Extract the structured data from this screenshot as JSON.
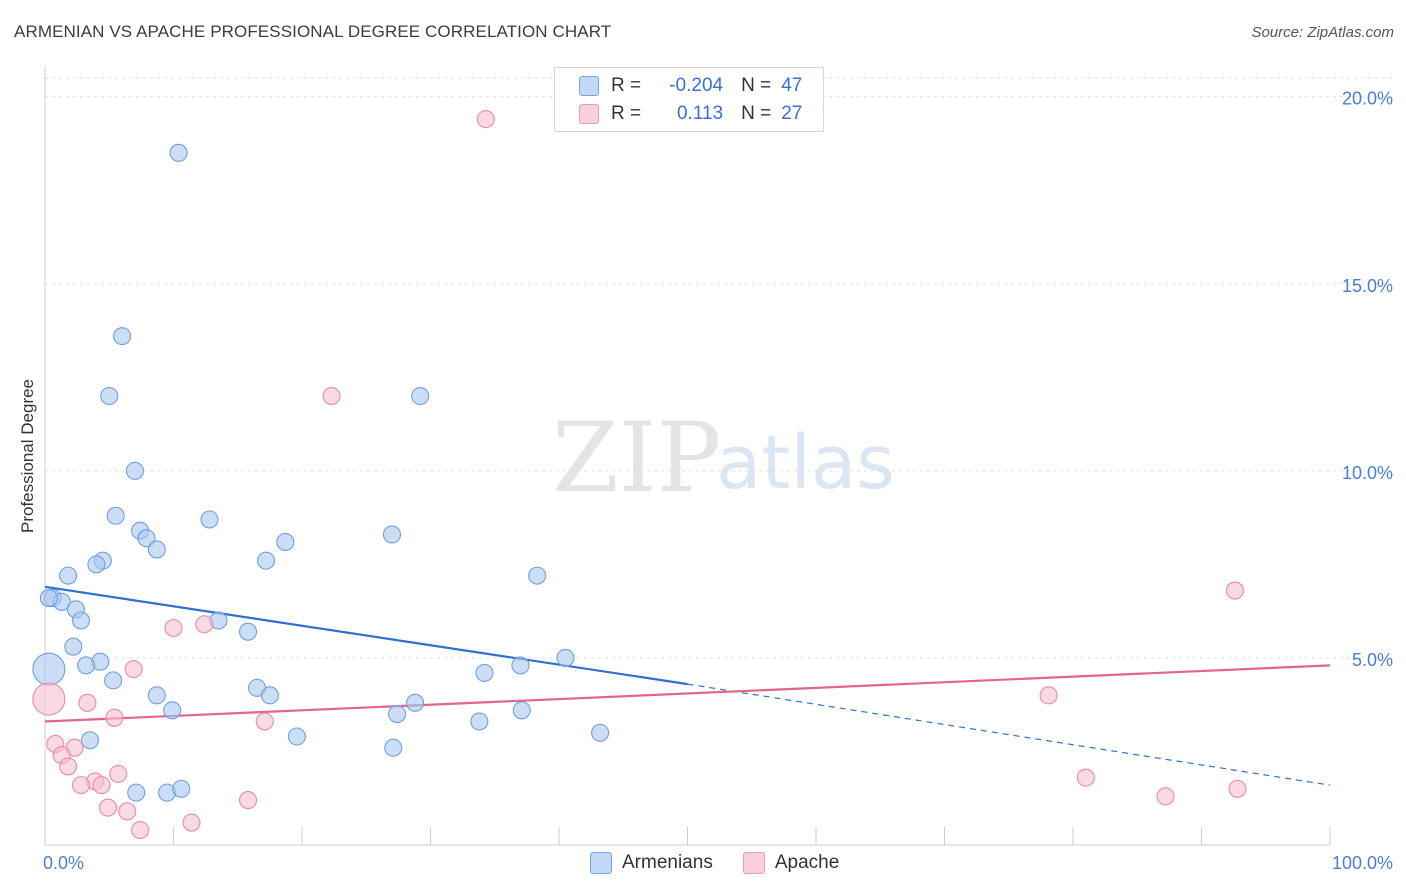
{
  "title": "ARMENIAN VS APACHE PROFESSIONAL DEGREE CORRELATION CHART",
  "source": "Source: ZipAtlas.com",
  "watermark": {
    "zip": "ZIP",
    "atlas": "atlas"
  },
  "legend": {
    "rows": [
      {
        "r_label": "R =",
        "r_value": "-0.204",
        "n_label": "N =",
        "n_value": "47"
      },
      {
        "r_label": "R =",
        "r_value": "0.113",
        "n_label": "N =",
        "n_value": "27"
      }
    ]
  },
  "bottom_legend": {
    "armenians": "Armenians",
    "apache": "Apache"
  },
  "colors": {
    "armenians_fill": "#a9c8f0",
    "armenians_stroke": "#6f9fdf",
    "armenians_line": "#2f6fd0",
    "apache_fill": "#f5bfd0",
    "apache_stroke": "#e98aa8",
    "apache_line": "#e0658f",
    "axis_label": "#4a7fd0",
    "grid": "#dddddd"
  },
  "chart_data": {
    "type": "scatter",
    "title": "ARMENIAN VS APACHE PROFESSIONAL DEGREE CORRELATION CHART",
    "xlabel": "",
    "ylabel": "Professional Degree",
    "xlim": [
      0,
      100
    ],
    "ylim": [
      0,
      20.5
    ],
    "x_tick_labels": [
      "0.0%",
      "100.0%"
    ],
    "y_ticks": [
      5,
      10,
      15,
      20
    ],
    "y_tick_labels": [
      "5.0%",
      "10.0%",
      "15.0%",
      "20.0%"
    ],
    "series": [
      {
        "name": "Armenians",
        "r": -0.204,
        "n": 47,
        "trend": {
          "x0": 0,
          "y0": 6.9,
          "x1": 50,
          "y1": 4.3,
          "dash_to_x": 100,
          "dash_to_y": 1.6
        },
        "points": [
          {
            "x": 10.4,
            "y": 18.5
          },
          {
            "x": 6.0,
            "y": 13.6
          },
          {
            "x": 5.0,
            "y": 12.0
          },
          {
            "x": 29.2,
            "y": 12.0
          },
          {
            "x": 7.0,
            "y": 10.0
          },
          {
            "x": 5.5,
            "y": 8.8
          },
          {
            "x": 7.4,
            "y": 8.4
          },
          {
            "x": 7.9,
            "y": 8.2
          },
          {
            "x": 8.7,
            "y": 7.9
          },
          {
            "x": 12.8,
            "y": 8.7
          },
          {
            "x": 18.7,
            "y": 8.1
          },
          {
            "x": 27.0,
            "y": 8.3
          },
          {
            "x": 4.5,
            "y": 7.6
          },
          {
            "x": 4.0,
            "y": 7.5
          },
          {
            "x": 17.2,
            "y": 7.6
          },
          {
            "x": 1.8,
            "y": 7.2
          },
          {
            "x": 38.3,
            "y": 7.2
          },
          {
            "x": 0.6,
            "y": 6.6
          },
          {
            "x": 1.3,
            "y": 6.5
          },
          {
            "x": 2.4,
            "y": 6.3
          },
          {
            "x": 2.8,
            "y": 6.0
          },
          {
            "x": 13.5,
            "y": 6.0
          },
          {
            "x": 15.8,
            "y": 5.7
          },
          {
            "x": 2.2,
            "y": 5.3
          },
          {
            "x": 40.5,
            "y": 5.0
          },
          {
            "x": 4.3,
            "y": 4.9
          },
          {
            "x": 3.2,
            "y": 4.8
          },
          {
            "x": 37.0,
            "y": 4.8
          },
          {
            "x": 34.2,
            "y": 4.6
          },
          {
            "x": 0.3,
            "y": 4.7
          },
          {
            "x": 5.3,
            "y": 4.4
          },
          {
            "x": 16.5,
            "y": 4.2
          },
          {
            "x": 8.7,
            "y": 4.0
          },
          {
            "x": 17.5,
            "y": 4.0
          },
          {
            "x": 28.8,
            "y": 3.8
          },
          {
            "x": 9.9,
            "y": 3.6
          },
          {
            "x": 27.4,
            "y": 3.5
          },
          {
            "x": 37.1,
            "y": 3.6
          },
          {
            "x": 33.8,
            "y": 3.3
          },
          {
            "x": 3.5,
            "y": 2.8
          },
          {
            "x": 19.6,
            "y": 2.9
          },
          {
            "x": 43.2,
            "y": 3.0
          },
          {
            "x": 27.1,
            "y": 2.6
          },
          {
            "x": 7.1,
            "y": 1.4
          },
          {
            "x": 9.5,
            "y": 1.4
          },
          {
            "x": 10.6,
            "y": 1.5
          },
          {
            "x": 0.3,
            "y": 6.6
          }
        ]
      },
      {
        "name": "Apache",
        "r": 0.113,
        "n": 27,
        "trend": {
          "x0": 0,
          "y0": 3.3,
          "x1": 100,
          "y1": 4.8
        },
        "points": [
          {
            "x": 34.3,
            "y": 19.4
          },
          {
            "x": 22.3,
            "y": 12.0
          },
          {
            "x": 92.6,
            "y": 6.8
          },
          {
            "x": 10.0,
            "y": 5.8
          },
          {
            "x": 12.4,
            "y": 5.9
          },
          {
            "x": 6.9,
            "y": 4.7
          },
          {
            "x": 0.3,
            "y": 3.9
          },
          {
            "x": 78.1,
            "y": 4.0
          },
          {
            "x": 3.3,
            "y": 3.8
          },
          {
            "x": 5.4,
            "y": 3.4
          },
          {
            "x": 17.1,
            "y": 3.3
          },
          {
            "x": 0.8,
            "y": 2.7
          },
          {
            "x": 2.3,
            "y": 2.6
          },
          {
            "x": 1.3,
            "y": 2.4
          },
          {
            "x": 1.8,
            "y": 2.1
          },
          {
            "x": 5.7,
            "y": 1.9
          },
          {
            "x": 3.9,
            "y": 1.7
          },
          {
            "x": 4.4,
            "y": 1.6
          },
          {
            "x": 2.8,
            "y": 1.6
          },
          {
            "x": 81.0,
            "y": 1.8
          },
          {
            "x": 92.8,
            "y": 1.5
          },
          {
            "x": 87.2,
            "y": 1.3
          },
          {
            "x": 15.8,
            "y": 1.2
          },
          {
            "x": 4.9,
            "y": 1.0
          },
          {
            "x": 6.4,
            "y": 0.9
          },
          {
            "x": 11.4,
            "y": 0.6
          },
          {
            "x": 7.4,
            "y": 0.4
          }
        ]
      }
    ]
  }
}
